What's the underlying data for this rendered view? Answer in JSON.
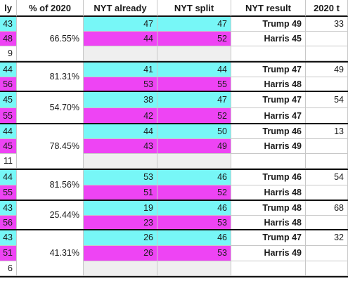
{
  "colors": {
    "cyan": "#77f7f7",
    "magenta": "#ee44f4",
    "gray": "#efefef",
    "white": "#ffffff"
  },
  "headers": [
    "ly",
    "% of 2020",
    "NYT already",
    "NYT split",
    "NYT result",
    "2020 t"
  ],
  "blocks": [
    {
      "partial": [
        "43",
        "48",
        "9"
      ],
      "pct": "66.55%",
      "already": [
        "47",
        "44"
      ],
      "split": [
        "47",
        "52"
      ],
      "result": [
        "Trump 49",
        "Harris 45"
      ],
      "t2020": "33"
    },
    {
      "partial": [
        "44",
        "56"
      ],
      "pct": "81.31%",
      "already": [
        "41",
        "53"
      ],
      "split": [
        "44",
        "55"
      ],
      "result": [
        "Trump 47",
        "Harris 48"
      ],
      "t2020": "49"
    },
    {
      "partial": [
        "45",
        "55"
      ],
      "pct": "54.70%",
      "already": [
        "38",
        "42"
      ],
      "split": [
        "47",
        "52"
      ],
      "result": [
        "Trump 47",
        "Harris 47"
      ],
      "t2020": "54"
    },
    {
      "partial": [
        "44",
        "45",
        "11"
      ],
      "pct": "78.45%",
      "already": [
        "44",
        "43"
      ],
      "split": [
        "50",
        "49"
      ],
      "result": [
        "Trump 46",
        "Harris 49"
      ],
      "t2020": "13"
    },
    {
      "partial": [
        "44",
        "55"
      ],
      "pct": "81.56%",
      "already": [
        "53",
        "51"
      ],
      "split": [
        "46",
        "52"
      ],
      "result": [
        "Trump 46",
        "Harris 48"
      ],
      "t2020": "54"
    },
    {
      "partial": [
        "43",
        "56"
      ],
      "pct": "25.44%",
      "already": [
        "19",
        "23"
      ],
      "split": [
        "46",
        "53"
      ],
      "result": [
        "Trump 48",
        "Harris 48"
      ],
      "t2020": "68"
    },
    {
      "partial": [
        "43",
        "51",
        "6"
      ],
      "pct": "41.31%",
      "already": [
        "26",
        "26"
      ],
      "split": [
        "46",
        "53"
      ],
      "result": [
        "Trump 47",
        "Harris 49"
      ],
      "t2020": "32"
    }
  ]
}
